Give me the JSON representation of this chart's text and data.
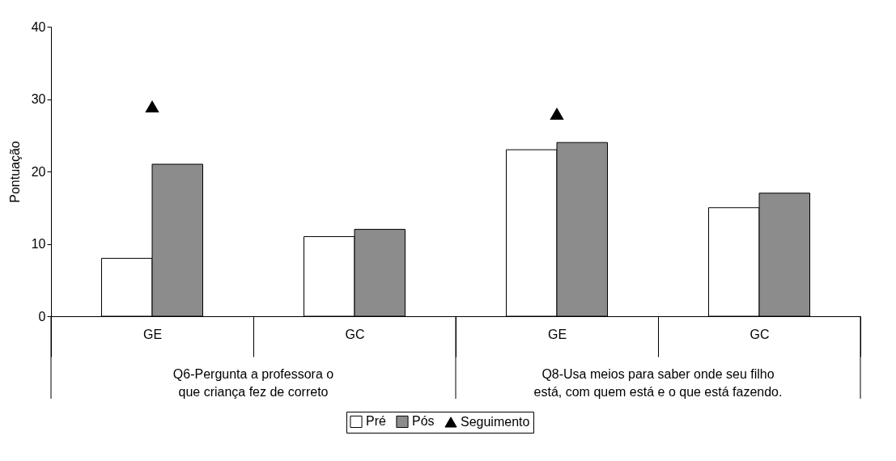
{
  "chart_data": {
    "type": "bar",
    "ylabel": "Pontuação",
    "categories": [
      "GE",
      "GC",
      "GE",
      "GC"
    ],
    "series": [
      {
        "name": "Pré",
        "color": "#ffffff",
        "values": [
          8,
          11,
          23,
          15
        ]
      },
      {
        "name": "Pós",
        "color": "#8c8c8c",
        "values": [
          21,
          12,
          24,
          17
        ]
      },
      {
        "name": "Seguimento",
        "type": "scatter",
        "color": "#000000",
        "marker": "triangle",
        "values": [
          29,
          null,
          28,
          null
        ]
      }
    ],
    "annotations": [
      "Q6-Pergunta a professora o que criança fez de correto",
      "Q8-Usa meios para saber onde seu filho está, com quem está e o que está fazendo."
    ],
    "ylim": [
      0,
      40
    ],
    "yticks": [
      0,
      10,
      20,
      30,
      40
    ],
    "grid": false,
    "legend": "bottom"
  }
}
